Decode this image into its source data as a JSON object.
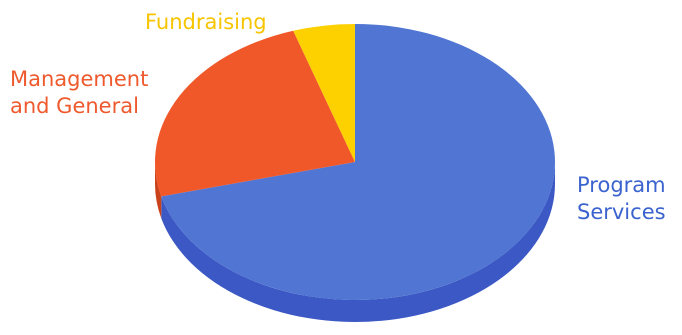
{
  "chart_data": {
    "type": "pie",
    "title": "",
    "legend": "none",
    "slices": [
      {
        "name": "Program Services",
        "lines": [
          "Program",
          "Services"
        ],
        "value": 71,
        "color": "#5075d2",
        "side_color": "#3b58c4",
        "label_color": "#3b63cf"
      },
      {
        "name": "Management and General",
        "lines": [
          "Management",
          "and General"
        ],
        "value": 24,
        "color": "#f0582a",
        "side_color": "#c9421a",
        "label_color": "#ee5a2e"
      },
      {
        "name": "Fundraising",
        "lines": [
          "Fundraising"
        ],
        "value": 5,
        "color": "#fdd000",
        "side_color": "#d8ac00",
        "label_color": "#f7c500"
      }
    ]
  }
}
